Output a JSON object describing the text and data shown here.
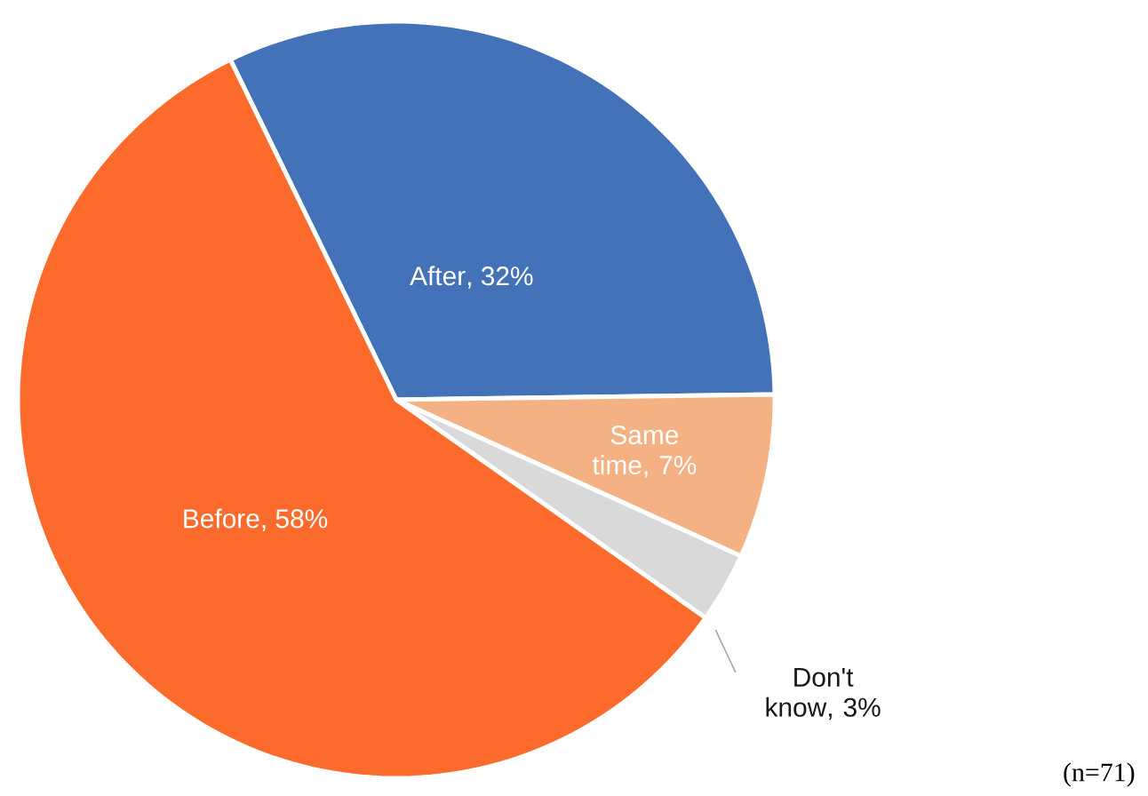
{
  "chart_data": {
    "type": "pie",
    "categories": [
      "After",
      "Same time",
      "Don't know",
      "Before"
    ],
    "values": [
      32,
      7,
      3,
      58
    ],
    "value_labels": [
      ", 32%",
      ", 7%",
      ", 3%",
      ", 58%"
    ],
    "data_labels": true,
    "colors": [
      "#4472b8",
      "#f4b183",
      "#d9d9d9",
      "#fd6b2c"
    ],
    "annotations": [
      "(n=71)"
    ]
  }
}
